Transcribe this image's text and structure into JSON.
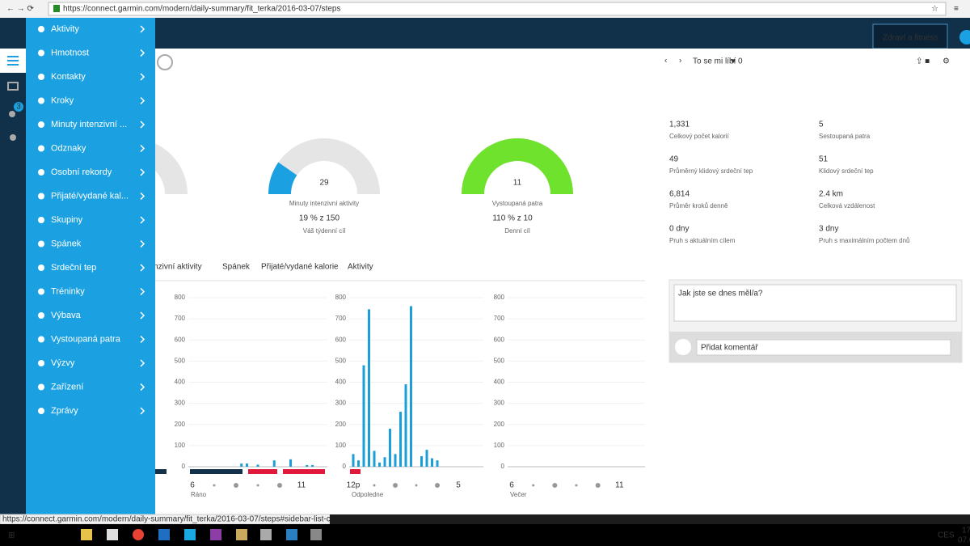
{
  "browser": {
    "url": "https://connect.garmin.com/modern/daily-summary/fit_terka/2016-03-07/steps",
    "status_url": "https://connect.garmin.com/modern/daily-summary/fit_terka/2016-03-07/steps#sidebar-list-container-0"
  },
  "header": {
    "tab": "Zdraví a fitness",
    "notification_count": 3
  },
  "menu": [
    "Aktivity",
    "Hmotnost",
    "Kontakty",
    "Kroky",
    "Minuty intenzivní ...",
    "Odznaky",
    "Osobní rekordy",
    "Přijaté/vydané kal...",
    "Skupiny",
    "Spánek",
    "Srdeční tep",
    "Tréninky",
    "Výbava",
    "Vystoupaná patra",
    "Výzvy",
    "Zařízení",
    "Zprávy"
  ],
  "like": {
    "label": "To se mi líbí",
    "count": 0
  },
  "gauges": [
    {
      "value": 29,
      "max": 150,
      "color": "#1ba1e2",
      "label": "Minuty intenzivní aktivity",
      "progress": "19 % z 150",
      "goal": "Váš týdenní cíl"
    },
    {
      "value": 11,
      "max": 10,
      "color": "#6fe22e",
      "label": "Vystoupaná patra",
      "progress": "110 % z 10",
      "goal": "Denní cíl"
    }
  ],
  "stats": [
    {
      "value": "1,331",
      "label": "Celkový počet kalorií"
    },
    {
      "value": "5",
      "label": "Sestoupaná patra"
    },
    {
      "value": "49",
      "label": "Průměrný klidový srdeční tep"
    },
    {
      "value": "51",
      "label": "Klidový srdeční tep"
    },
    {
      "value": "6,814",
      "label": "Průměr kroků denně"
    },
    {
      "value": "2.4 km",
      "label": "Celková vzdálenost"
    },
    {
      "value": "0 dny",
      "label": "Pruh s aktuálním cílem"
    },
    {
      "value": "3 dny",
      "label": "Pruh s maximálním počtem dnů"
    }
  ],
  "tabs": [
    "intenzivní aktivity",
    "Spánek",
    "Přijaté/vydané kalorie",
    "Aktivity"
  ],
  "comments": {
    "question": "Jak jste se dnes měl/a?",
    "placeholder": "Přidat komentář"
  },
  "taskbar": {
    "language": "CES",
    "time": "17",
    "date": "07.03"
  },
  "chart_data": [
    {
      "type": "bar",
      "xlabel": "Ráno",
      "color": "#1a9fd9",
      "x": [
        8.25,
        8.5,
        9,
        9.75,
        10.5,
        11.25,
        11.5
      ],
      "values": [
        15,
        15,
        10,
        30,
        35,
        8,
        8
      ],
      "xlim": [
        6,
        12
      ],
      "xticks": [
        6,
        11
      ],
      "ylim": [
        0,
        800
      ],
      "yticks": [
        0,
        100,
        200,
        300,
        400,
        500,
        600,
        700,
        800
      ]
    },
    {
      "type": "bar",
      "xlabel": "Odpoledne",
      "color": "#1a9fd9",
      "x": [
        12,
        12.25,
        12.5,
        12.75,
        13,
        13.25,
        13.5,
        13.75,
        14,
        14.25,
        14.5,
        14.75,
        15.25,
        15.5,
        15.75,
        16
      ],
      "values": [
        60,
        30,
        480,
        745,
        75,
        20,
        45,
        180,
        60,
        260,
        390,
        760,
        50,
        80,
        40,
        30
      ],
      "xlim": [
        12,
        18
      ],
      "xticks": [
        {
          "value": 12,
          "label": "12p"
        },
        {
          "value": 17,
          "label": "5"
        }
      ],
      "ylim": [
        0,
        800
      ],
      "yticks": [
        0,
        100,
        200,
        300,
        400,
        500,
        600,
        700,
        800
      ]
    },
    {
      "type": "bar",
      "xlabel": "Večer",
      "color": "#1a9fd9",
      "x": [],
      "values": [],
      "xlim": [
        18,
        24
      ],
      "xticks": [
        {
          "value": 18,
          "label": "6"
        },
        {
          "value": 23,
          "label": "11"
        }
      ],
      "ylim": [
        0,
        800
      ],
      "yticks": [
        0,
        100,
        200,
        300,
        400,
        500,
        600,
        700,
        800
      ]
    }
  ]
}
